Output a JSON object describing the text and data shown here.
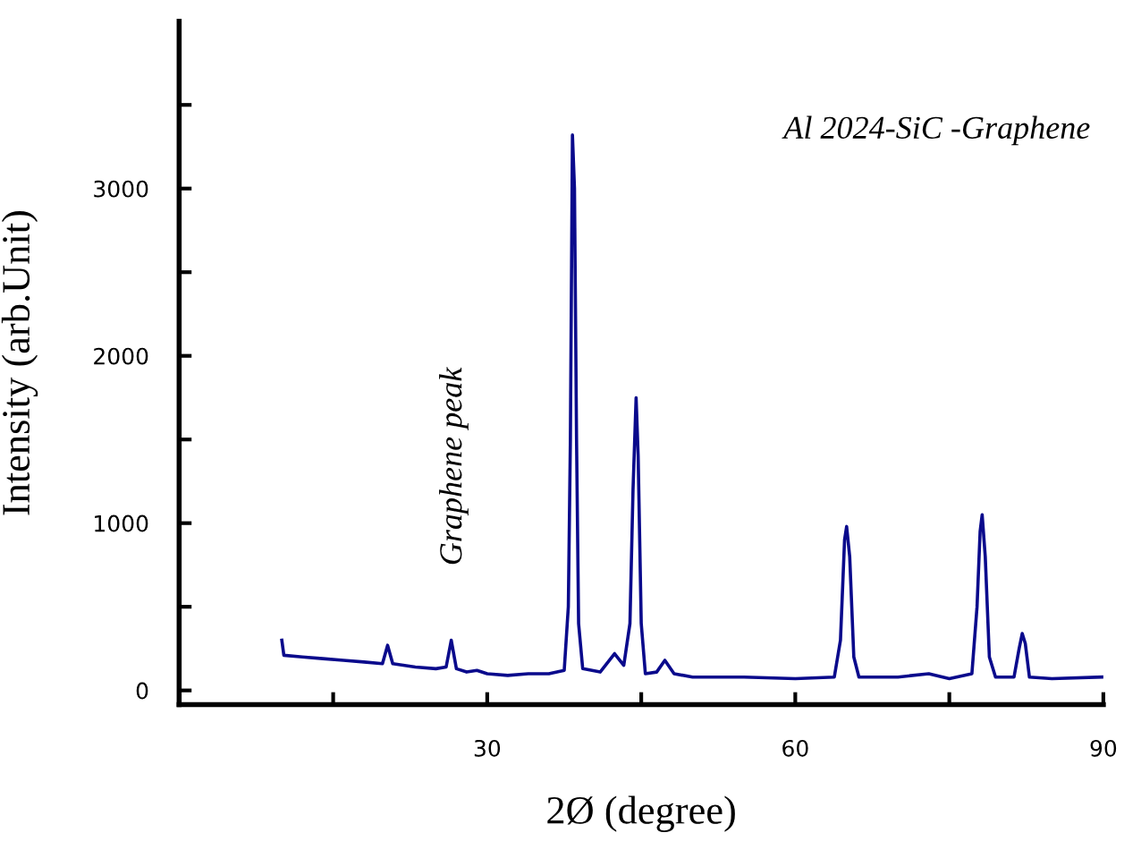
{
  "chart_data": {
    "type": "line",
    "xlabel": "2Ø (degree)",
    "ylabel": "Intensity (arb.Unit)",
    "xlim": [
      0,
      90
    ],
    "ylim": [
      -85,
      4000
    ],
    "xticks": [
      {
        "value": 15,
        "label": null
      },
      30,
      {
        "value": 45,
        "label": null
      },
      60,
      {
        "value": 75,
        "label": null
      },
      90
    ],
    "yticks": [
      0,
      {
        "value": 500,
        "label": null
      },
      1000,
      {
        "value": 1500,
        "label": null
      },
      2000,
      {
        "value": 2500,
        "label": null
      },
      3000,
      {
        "value": 3500,
        "label": null
      }
    ],
    "grid": false,
    "marker": "none",
    "line_style": "solid",
    "annotations": [
      "Al 2024-SiC -Graphene",
      {
        "text": "Graphene peak",
        "x": 26.5,
        "y": 300
      }
    ],
    "series": [
      {
        "color": "#0a0a8c",
        "x": [
          10.0,
          10.2,
          12,
          14,
          16,
          18,
          19.8,
          20.3,
          20.8,
          23,
          25,
          26.0,
          26.5,
          27.0,
          28,
          29,
          30,
          32,
          34,
          36,
          37.5,
          37.9,
          38.1,
          38.3,
          38.5,
          38.7,
          38.9,
          39.3,
          41,
          42.4,
          43.3,
          43.9,
          44.2,
          44.5,
          44.7,
          45.0,
          45.4,
          46.5,
          47.3,
          48.2,
          50,
          55,
          60,
          63.8,
          64.4,
          64.8,
          65.0,
          65.3,
          65.7,
          66.2,
          70,
          73,
          75,
          77.2,
          77.7,
          78.0,
          78.2,
          78.5,
          78.9,
          79.5,
          81.3,
          81.8,
          82.1,
          82.4,
          82.8,
          85,
          89.9
        ],
        "values": [
          300,
          210,
          200,
          190,
          180,
          170,
          160,
          270,
          160,
          140,
          130,
          140,
          300,
          130,
          110,
          120,
          100,
          90,
          100,
          100,
          120,
          500,
          1500,
          3320,
          3000,
          1500,
          400,
          130,
          110,
          220,
          150,
          400,
          1200,
          1750,
          1400,
          400,
          100,
          110,
          180,
          100,
          80,
          80,
          70,
          80,
          300,
          900,
          980,
          800,
          200,
          80,
          80,
          100,
          70,
          100,
          500,
          950,
          1050,
          800,
          200,
          80,
          80,
          250,
          340,
          280,
          80,
          70,
          80
        ]
      }
    ]
  }
}
